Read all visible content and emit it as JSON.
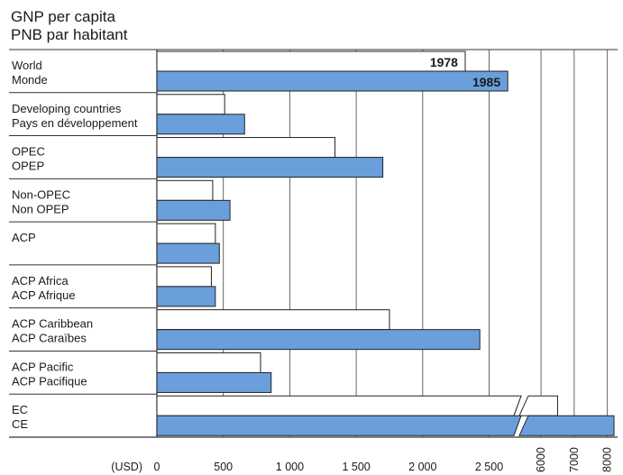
{
  "chart_data": {
    "type": "bar",
    "title": "GNP per capita",
    "subtitle": "PNB par habitant",
    "unit_label": "(USD)",
    "series": [
      {
        "name": "1978",
        "color": "#ffffff"
      },
      {
        "name": "1985",
        "color": "#6a9fdb"
      }
    ],
    "categories": [
      {
        "label_en": "World",
        "label_fr": "Monde",
        "values": [
          2320,
          2640
        ]
      },
      {
        "label_en": "Developing countries",
        "label_fr": "Pays en développement",
        "values": [
          510,
          660
        ]
      },
      {
        "label_en": "OPEC",
        "label_fr": "OPEP",
        "values": [
          1340,
          1700
        ]
      },
      {
        "label_en": "Non-OPEC",
        "label_fr": "Non OPEP",
        "values": [
          420,
          550
        ]
      },
      {
        "label_en": "ACP",
        "label_fr": "",
        "values": [
          440,
          470
        ]
      },
      {
        "label_en": "ACP Africa",
        "label_fr": "ACP Afrique",
        "values": [
          410,
          440
        ]
      },
      {
        "label_en": "ACP Caribbean",
        "label_fr": "ACP Caraïbes",
        "values": [
          1750,
          2430
        ]
      },
      {
        "label_en": "ACP Pacific",
        "label_fr": "ACP Pacifique",
        "values": [
          780,
          860
        ]
      },
      {
        "label_en": "EC",
        "label_fr": "CE",
        "values": [
          6500,
          8200
        ]
      }
    ],
    "x_ticks_main": [
      0,
      500,
      1000,
      1500,
      2000,
      2500
    ],
    "x_ticks_broken": [
      6000,
      7000,
      8000
    ],
    "axis_break": {
      "from": 2700,
      "to": 5400
    },
    "xlim": [
      0,
      8200
    ],
    "grid": true
  }
}
